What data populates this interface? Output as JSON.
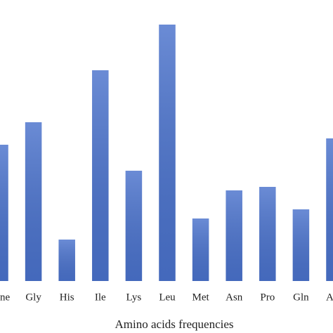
{
  "chart_data": {
    "type": "bar",
    "x_label": "Amino acids frequencies",
    "categories": [
      "ne",
      "Gly",
      "His",
      "Ile",
      "Lys",
      "Leu",
      "Met",
      "Asn",
      "Pro",
      "Gln",
      "A"
    ],
    "values": [
      194,
      226,
      59,
      300,
      157,
      365,
      89,
      129,
      134,
      102,
      203
    ],
    "color": "#4a72cc",
    "ylim": [
      0,
      400
    ]
  }
}
